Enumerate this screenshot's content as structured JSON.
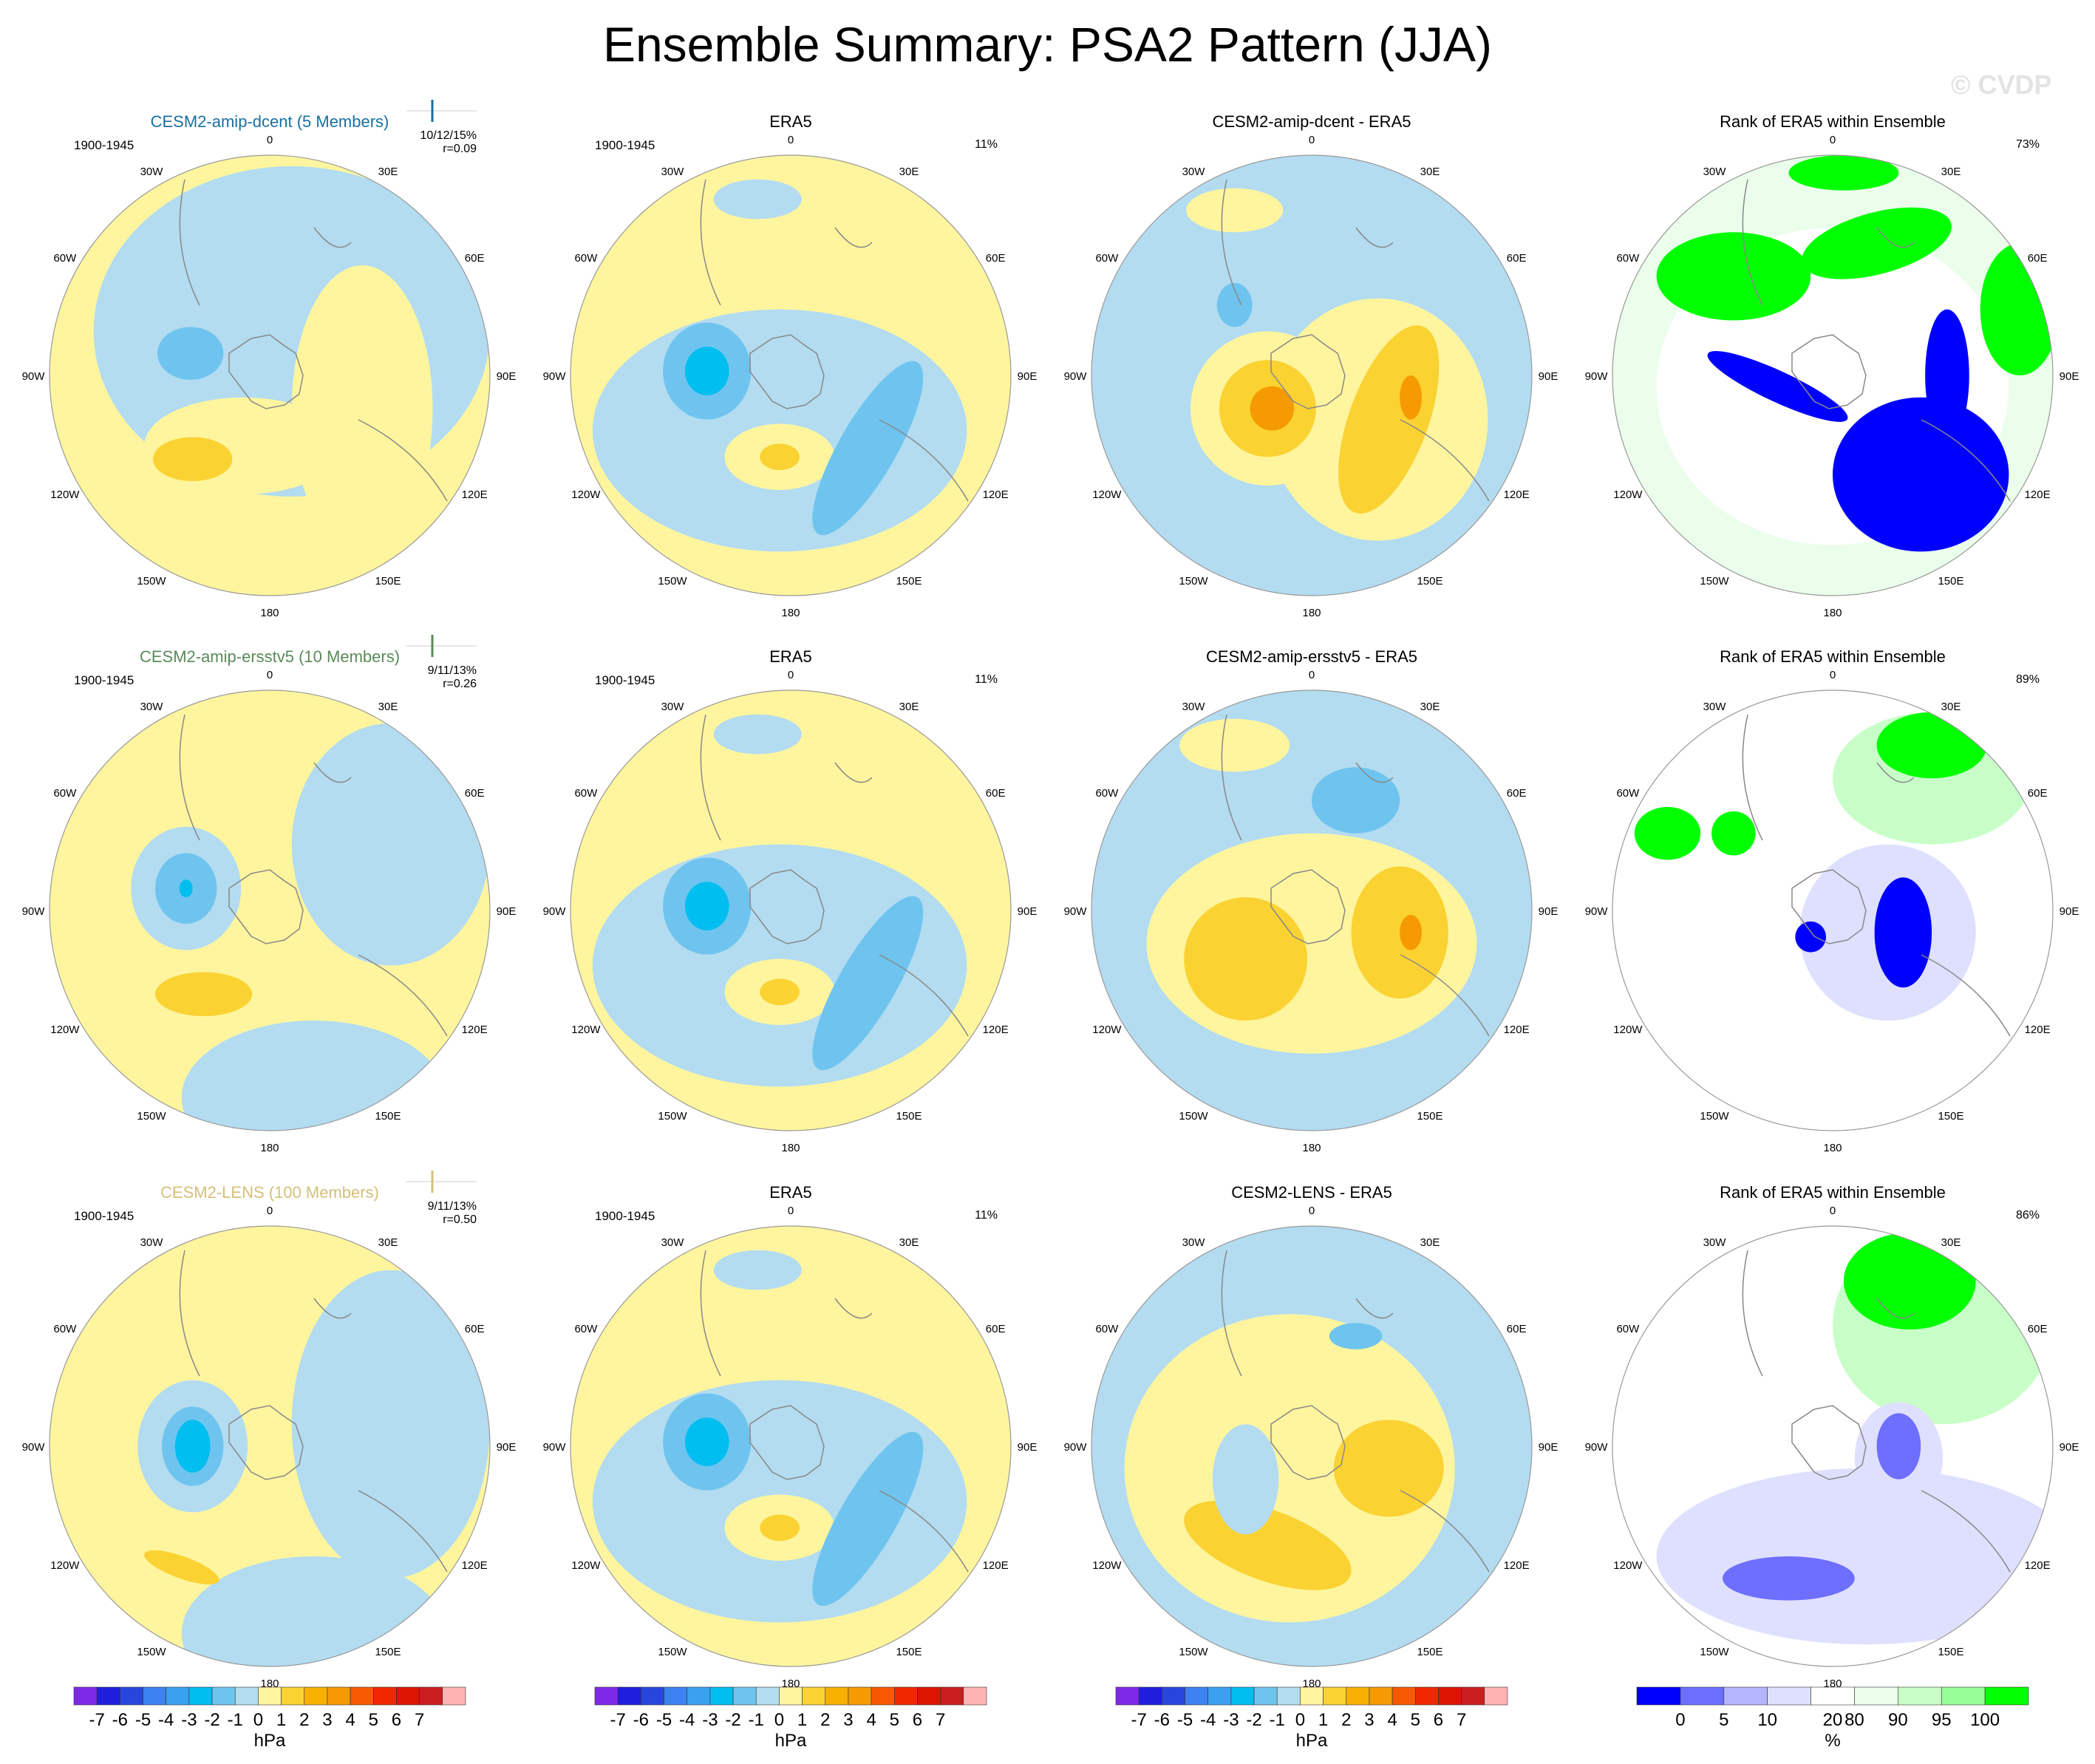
{
  "title": "Ensemble Summary: PSA2 Pattern (JJA)",
  "watermark": "© CVDP",
  "lon_labels": [
    "0",
    "30E",
    "60E",
    "90E",
    "120E",
    "150E",
    "180",
    "150W",
    "120W",
    "90W",
    "60W",
    "30W"
  ],
  "period": "1900-1945",
  "colors": {
    "blue_light": "#b3dcf1",
    "blue_mid": "#6ec4ee",
    "blue_strong": "#00bef0",
    "blue_deep": "#3aa0e0",
    "yellow_light": "#fff59e",
    "yellow_mid": "#fad232",
    "yellow_orange": "#f8b000",
    "orange": "#f59a00",
    "rank_green": "#00ff00",
    "rank_light_green": "#c8ffc8",
    "rank_pale_green": "#ebfdeb",
    "rank_blue": "#0000ff",
    "rank_mid_blue": "#6e6eff",
    "rank_pale_blue": "#dfe0ff",
    "coast": "#888888",
    "cesm2_dcent_title": "#1a6fa0",
    "cesm2_ersst_title": "#5a8a5a",
    "cesm2_lens_title": "#d4c07a"
  },
  "rows": [
    {
      "model_title": "CESM2-amip-dcent (5 Members)",
      "model_stats": "10/12/15%",
      "model_r": "r=0.09",
      "obs_title": "ERA5",
      "obs_pct": "11%",
      "diff_title": "CESM2-amip-dcent - ERA5",
      "rank_title": "Rank of ERA5 within Ensemble",
      "rank_pct": "73%"
    },
    {
      "model_title": "CESM2-amip-ersstv5 (10 Members)",
      "model_stats": "9/11/13%",
      "model_r": "r=0.26",
      "obs_title": "ERA5",
      "obs_pct": "11%",
      "diff_title": "CESM2-amip-ersstv5 - ERA5",
      "rank_title": "Rank of ERA5 within Ensemble",
      "rank_pct": "89%"
    },
    {
      "model_title": "CESM2-LENS (100 Members)",
      "model_stats": "9/11/13%",
      "model_r": "r=0.50",
      "obs_title": "ERA5",
      "obs_pct": "11%",
      "diff_title": "CESM2-LENS - ERA5",
      "rank_title": "Rank of ERA5 within Ensemble",
      "rank_pct": "86%"
    }
  ],
  "colorbar_hpa": {
    "colors": [
      "#7d28e6",
      "#1e1edc",
      "#2846dc",
      "#3c82f0",
      "#3ca0f0",
      "#00bef0",
      "#6ec4ee",
      "#b3dcf1",
      "#fff59e",
      "#fad232",
      "#f8b000",
      "#f59a00",
      "#f55a00",
      "#f02800",
      "#dc1400",
      "#c81e1e",
      "#ffb4b4"
    ],
    "labels": [
      "-7",
      "-6",
      "-5",
      "-4",
      "-3",
      "-2",
      "-1",
      "0",
      "1",
      "2",
      "3",
      "4",
      "5",
      "6",
      "7"
    ],
    "unit": "hPa"
  },
  "colorbar_rank": {
    "colors": [
      "#0000ff",
      "#6e6eff",
      "#b4b4ff",
      "#dfe0ff",
      "#ffffff",
      "#ebfdeb",
      "#c8ffc8",
      "#96ff96",
      "#00ff00"
    ],
    "labels": [
      "0",
      "5",
      "10",
      "20",
      "80",
      "90",
      "95",
      "100"
    ],
    "unit": "%"
  },
  "chart_data": [
    {
      "type": "heatmap",
      "title": "CESM2-amip-dcent (5 Members)",
      "projection": "south-polar-stereographic",
      "unit": "hPa",
      "contour_levels": [
        -7,
        -6,
        -5,
        -4,
        -3,
        -2,
        -1,
        0,
        1,
        2,
        3,
        4,
        5,
        6,
        7
      ],
      "value_range": [
        -3,
        2
      ]
    },
    {
      "type": "heatmap",
      "title": "ERA5",
      "projection": "south-polar-stereographic",
      "unit": "hPa",
      "value_range": [
        -3,
        2
      ]
    },
    {
      "type": "heatmap",
      "title": "CESM2-amip-dcent - ERA5",
      "projection": "south-polar-stereographic",
      "unit": "hPa",
      "value_range": [
        -2,
        4
      ]
    },
    {
      "type": "heatmap",
      "title": "Rank of ERA5 within Ensemble",
      "projection": "south-polar-stereographic",
      "unit": "%",
      "value_range": [
        0,
        100
      ]
    },
    {
      "type": "heatmap",
      "title": "CESM2-amip-ersstv5 (10 Members)",
      "projection": "south-polar-stereographic",
      "unit": "hPa",
      "value_range": [
        -3,
        2
      ]
    },
    {
      "type": "heatmap",
      "title": "ERA5",
      "projection": "south-polar-stereographic",
      "unit": "hPa",
      "value_range": [
        -3,
        2
      ]
    },
    {
      "type": "heatmap",
      "title": "CESM2-amip-ersstv5 - ERA5",
      "projection": "south-polar-stereographic",
      "unit": "hPa",
      "value_range": [
        -2,
        3
      ]
    },
    {
      "type": "heatmap",
      "title": "Rank of ERA5 within Ensemble",
      "projection": "south-polar-stereographic",
      "unit": "%",
      "value_range": [
        0,
        100
      ]
    },
    {
      "type": "heatmap",
      "title": "CESM2-LENS (100 Members)",
      "projection": "south-polar-stereographic",
      "unit": "hPa",
      "value_range": [
        -3,
        2
      ]
    },
    {
      "type": "heatmap",
      "title": "ERA5",
      "projection": "south-polar-stereographic",
      "unit": "hPa",
      "value_range": [
        -3,
        2
      ]
    },
    {
      "type": "heatmap",
      "title": "CESM2-LENS - ERA5",
      "projection": "south-polar-stereographic",
      "unit": "hPa",
      "value_range": [
        -1,
        2
      ]
    },
    {
      "type": "heatmap",
      "title": "Rank of ERA5 within Ensemble",
      "projection": "south-polar-stereographic",
      "unit": "%",
      "value_range": [
        0,
        100
      ]
    }
  ]
}
